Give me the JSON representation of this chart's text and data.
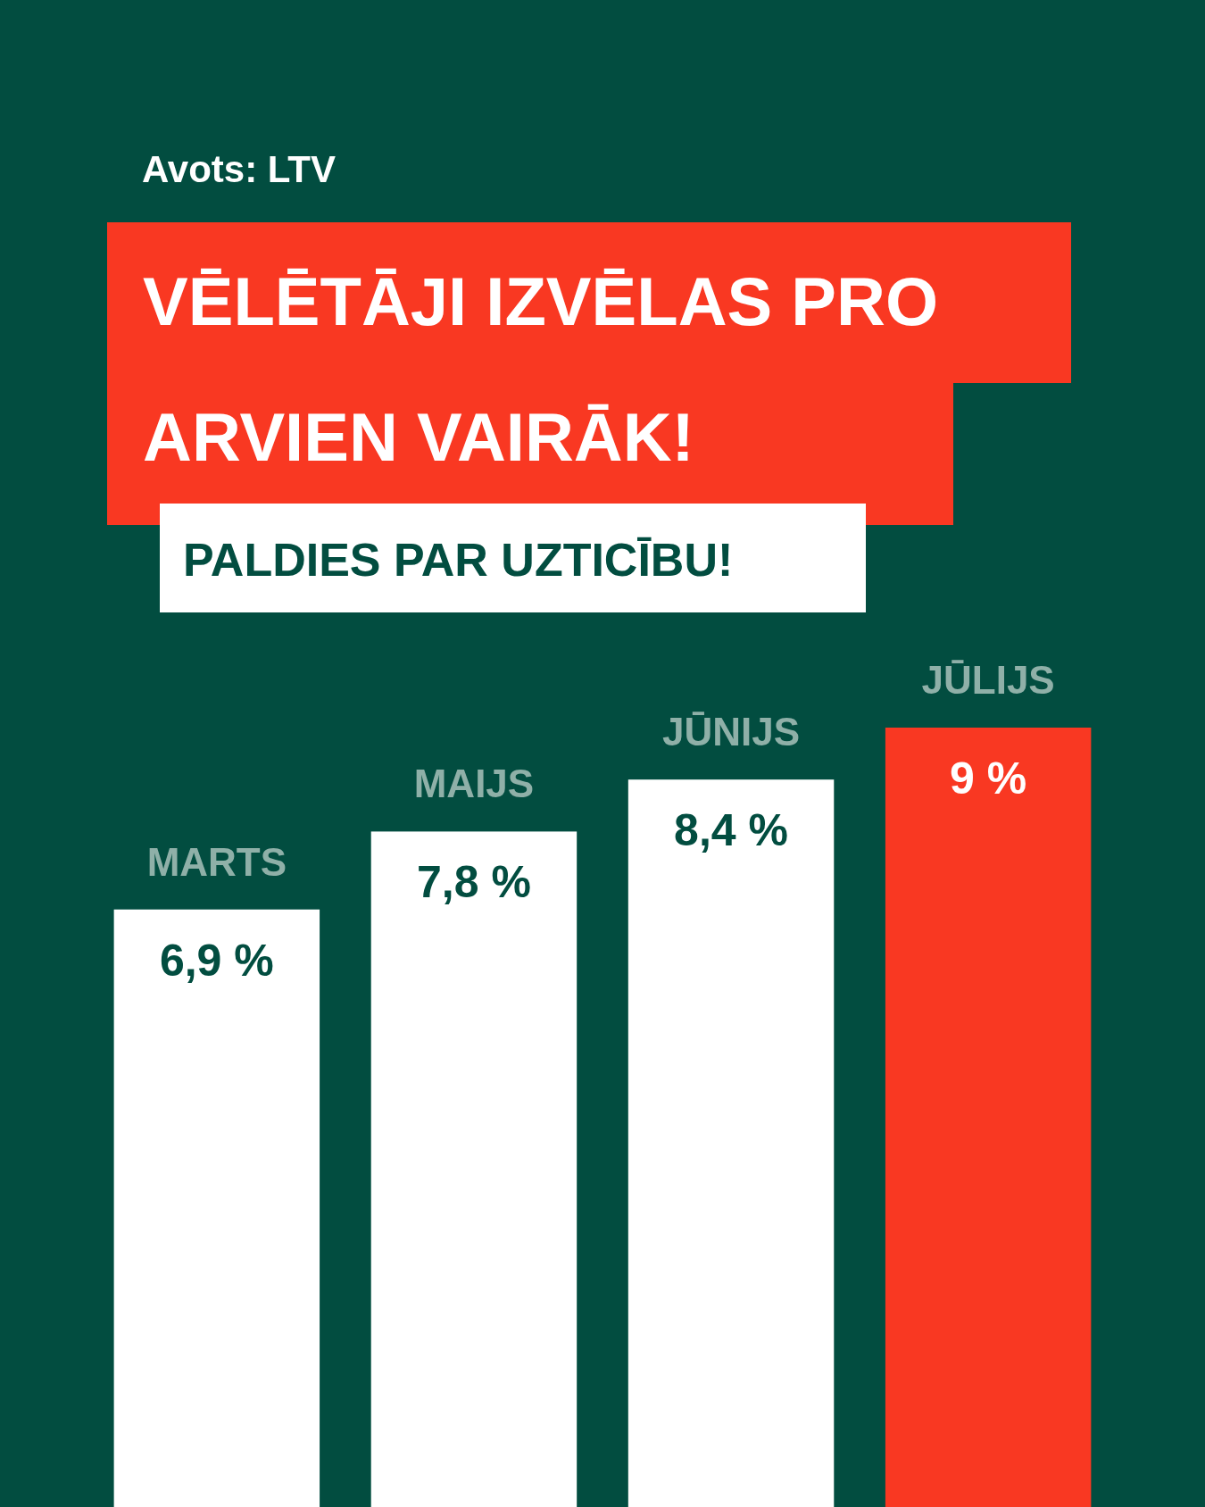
{
  "chart_data": {
    "type": "bar",
    "title": "VĒLĒTĀJI IZVĒLAS PRO\nARVIEN VAIRĀK!",
    "subtitle": "PALDIES PAR UZTICĪBU!",
    "annotations": [
      "Avots: LTV"
    ],
    "categories": [
      "MARTS",
      "MAIJS",
      "JŪNIJS",
      "JŪLIJS"
    ],
    "values": [
      6.9,
      7.8,
      8.4,
      9
    ],
    "colors": [
      "#ffffff",
      "#ffffff",
      "#ffffff",
      "#f93822"
    ],
    "value_labels": [
      "6,9 %",
      "7,8 %",
      "8,4 %",
      "9 %"
    ],
    "tick_labels": "x"
  }
}
